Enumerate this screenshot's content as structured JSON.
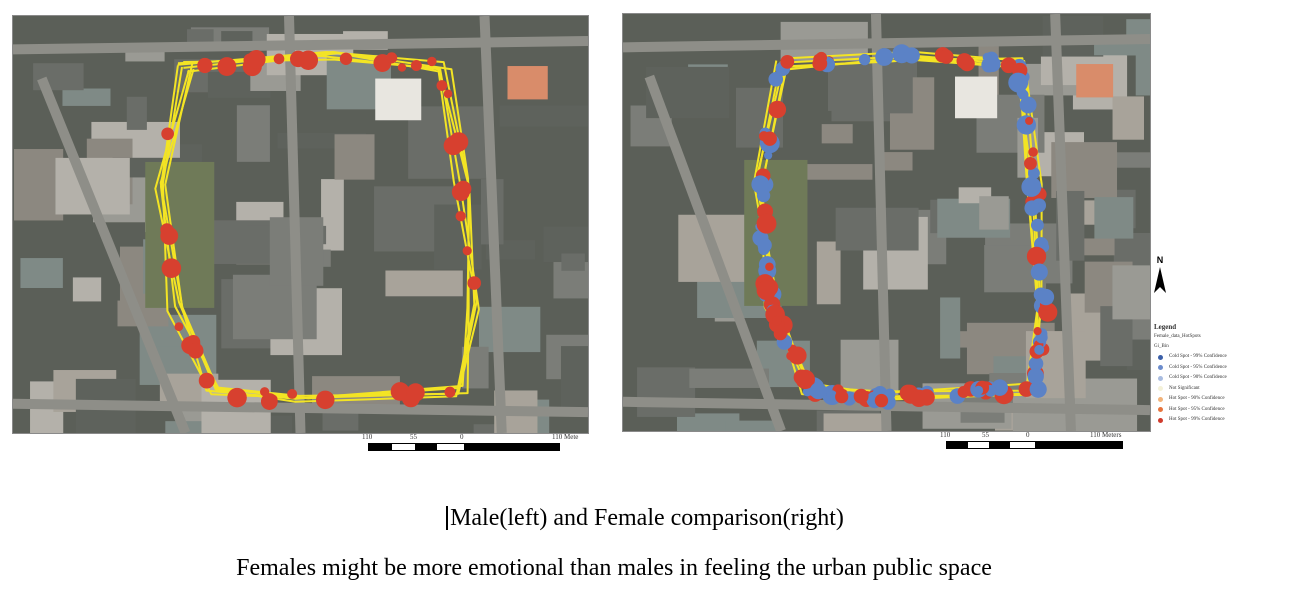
{
  "maps": {
    "left": {
      "description_label": "Male",
      "route_color": "#f3e424",
      "hot_color": "#d7402f",
      "scale_labels": [
        "110",
        "55",
        "0",
        "110 Mete"
      ]
    },
    "right": {
      "description_label": "Female",
      "cold_color": "#5b82c6",
      "hot_color": "#d7402f",
      "route_color": "#f3e424",
      "scale_labels": [
        "110",
        "55",
        "0",
        "110 Meters"
      ]
    }
  },
  "north_arrow": {
    "label": "N"
  },
  "legend": {
    "title": "Legend",
    "layer": "Female_data_HotSpots",
    "field": "Gi_Bin",
    "items": [
      {
        "label": "Cold Spot - 99% Confidence",
        "color": "#3b5fa8"
      },
      {
        "label": "Cold Spot - 95% Confidence",
        "color": "#6c8ccc"
      },
      {
        "label": "Cold Spot - 90% Confidence",
        "color": "#a9bce0"
      },
      {
        "label": "Not Significant",
        "color": "#f4f1d8"
      },
      {
        "label": "Hot Spot - 90% Confidence",
        "color": "#f2b37a"
      },
      {
        "label": "Hot Spot - 95% Confidence",
        "color": "#e7743d"
      },
      {
        "label": "Hot Spot - 99% Confidence",
        "color": "#d03b2d"
      }
    ]
  },
  "captions": {
    "comparison": "Male(left) and Female comparison(right)",
    "conclusion": "Females might be more emotional than males in feeling the urban public space"
  }
}
